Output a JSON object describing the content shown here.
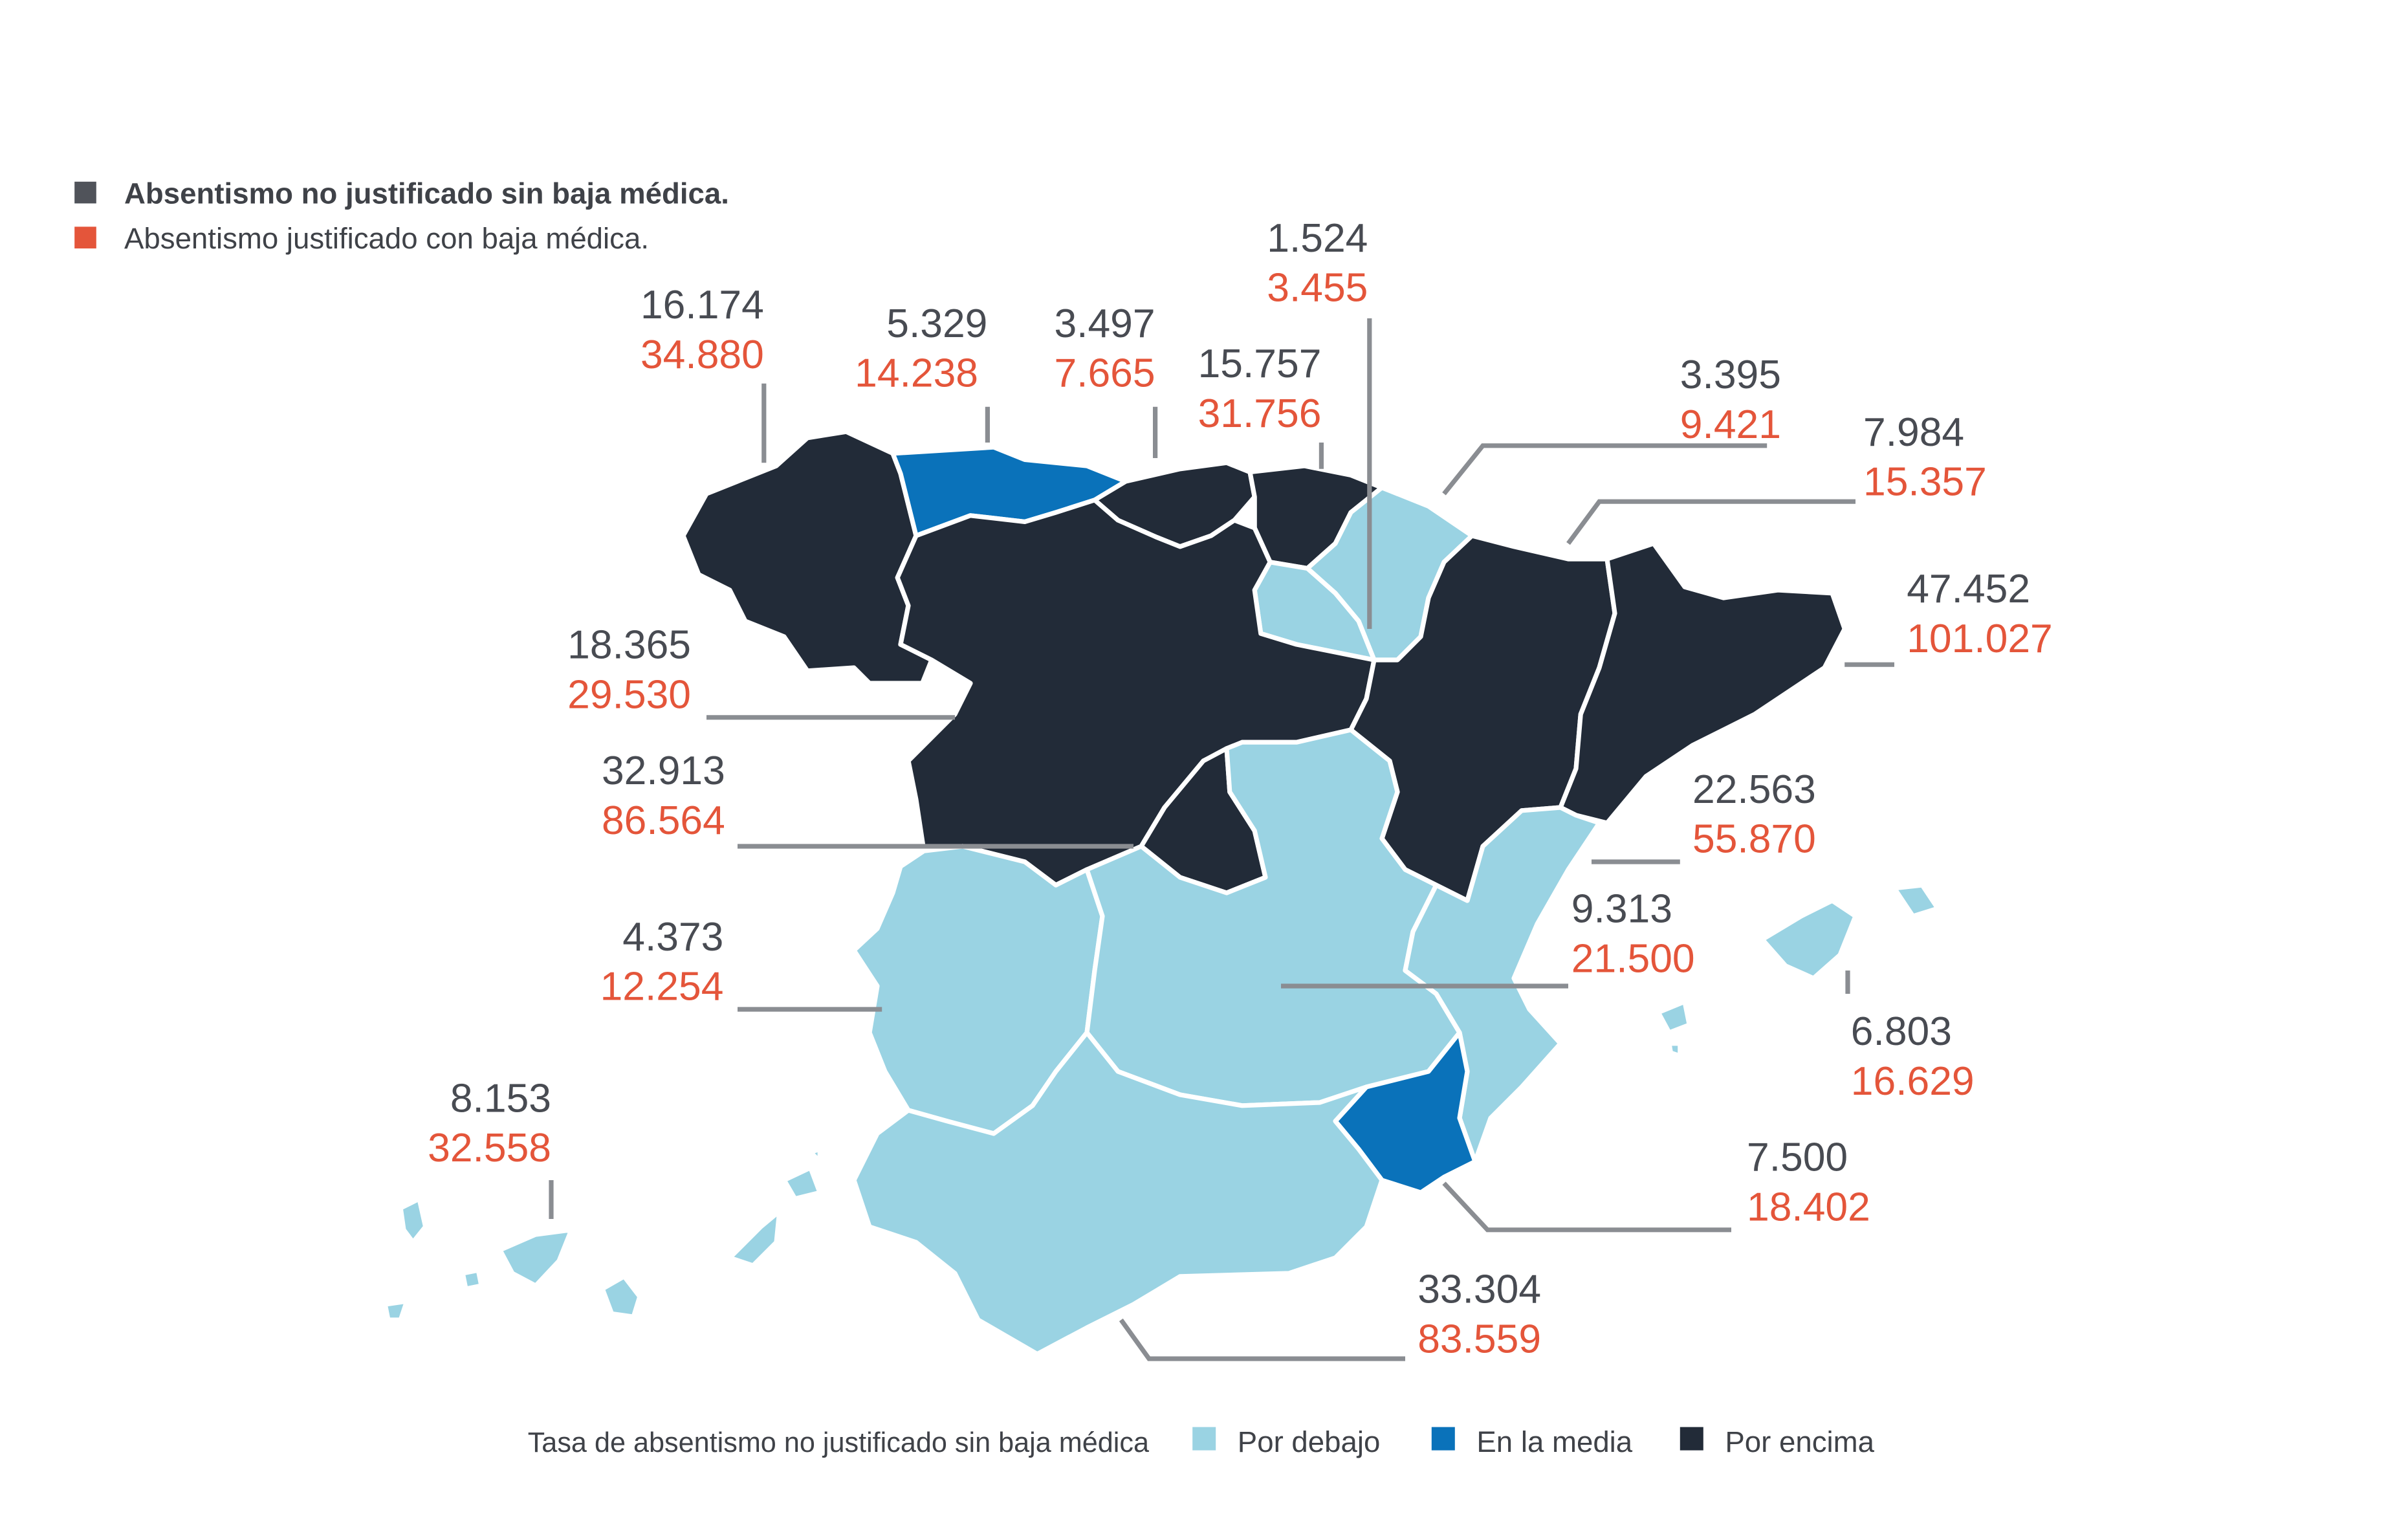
{
  "key": {
    "items": [
      {
        "label": "Absentismo no justificado sin baja médica.",
        "color": "#50535a",
        "bold": true
      },
      {
        "label": "Absentismo justificado con baja médica.",
        "color": "#e4553a",
        "bold": false
      }
    ]
  },
  "legend": {
    "title": "Tasa de absentismo no justificado sin baja médica",
    "items": [
      {
        "label": "Por debajo",
        "color": "#9ad3e3"
      },
      {
        "label": "En la media",
        "color": "#0a72ba"
      },
      {
        "label": "Por encima",
        "color": "#222b38"
      }
    ]
  },
  "colors": {
    "below": "#9ad3e3",
    "average": "#0a72ba",
    "above": "#222b38",
    "value_a": "#484b52",
    "value_b": "#e4553a"
  },
  "regions": [
    {
      "id": "galicia",
      "a": "16.174",
      "b": "34.880",
      "category": "above"
    },
    {
      "id": "asturias",
      "a": "5.329",
      "b": "14.238",
      "category": "average"
    },
    {
      "id": "cantabria",
      "a": "3.497",
      "b": "7.665",
      "category": "above"
    },
    {
      "id": "pais-vasco",
      "a": "15.757",
      "b": "31.756",
      "category": "above"
    },
    {
      "id": "la-rioja",
      "a": "1.524",
      "b": "3.455",
      "category": "below"
    },
    {
      "id": "navarra",
      "a": "3.395",
      "b": "9.421",
      "category": "below"
    },
    {
      "id": "aragon",
      "a": "7.984",
      "b": "15.357",
      "category": "above"
    },
    {
      "id": "cataluna",
      "a": "47.452",
      "b": "101.027",
      "category": "above"
    },
    {
      "id": "castilla-y-leon",
      "a": "18.365",
      "b": "29.530",
      "category": "above"
    },
    {
      "id": "madrid",
      "a": "32.913",
      "b": "86.564",
      "category": "above"
    },
    {
      "id": "comunidad-valenciana",
      "a": "22.563",
      "b": "55.870",
      "category": "below"
    },
    {
      "id": "castilla-la-mancha",
      "a": "9.313",
      "b": "21.500",
      "category": "below"
    },
    {
      "id": "extremadura",
      "a": "4.373",
      "b": "12.254",
      "category": "below"
    },
    {
      "id": "baleares",
      "a": "6.803",
      "b": "16.629",
      "category": "below"
    },
    {
      "id": "canarias",
      "a": "8.153",
      "b": "32.558",
      "category": "below"
    },
    {
      "id": "murcia",
      "a": "7.500",
      "b": "18.402",
      "category": "average"
    },
    {
      "id": "andalucia",
      "a": "33.304",
      "b": "83.559",
      "category": "below"
    }
  ]
}
